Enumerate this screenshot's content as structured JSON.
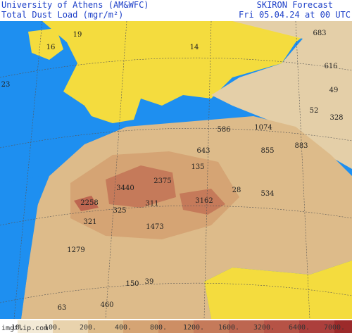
{
  "header": {
    "left": [
      "University of Athens (AM&WFC)",
      "Total Dust Load (mgr/m²)"
    ],
    "right": [
      "SKIRON Forecast",
      "Fri 05.04.24 at 00 UTC"
    ]
  },
  "map": {
    "labels": [
      "19",
      "16",
      "14",
      "683",
      "616",
      "23",
      "49",
      "52",
      "328",
      "586",
      "1074",
      "855",
      "883",
      "643",
      "135",
      "2375",
      "3440",
      "28",
      "534",
      "2258",
      "311",
      "3162",
      "325",
      "321",
      "1473",
      "1279",
      "150",
      "39",
      "63",
      "460"
    ]
  },
  "colorbar": {
    "labels": [
      "10.",
      "100.",
      "200.",
      "400.",
      "800.",
      "1200.",
      "1600.",
      "3200.",
      "6400.",
      "7000."
    ],
    "colors": [
      "#f3ead6",
      "#e9d3ad",
      "#ddbb8a",
      "#d5a474",
      "#cd8e64",
      "#c57a5a",
      "#bd6650",
      "#b65346",
      "#ac3f3c",
      "#9c2a2a"
    ]
  },
  "watermark": "imgflip.com"
}
